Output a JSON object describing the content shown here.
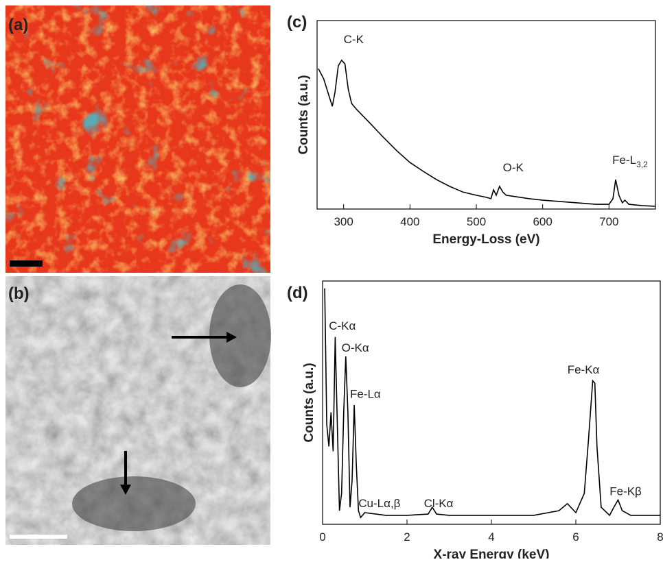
{
  "images": [
    {
      "label": "(a)"
    },
    {
      "label": "(b)"
    }
  ],
  "chart_data": [
    {
      "type": "line",
      "label": "(c)",
      "xlabel": "Energy-Loss (eV)",
      "ylabel": "Counts (a.u.)",
      "color": "#000000",
      "xlim": [
        260,
        770
      ],
      "xticks": [
        300,
        400,
        500,
        600,
        700
      ],
      "ylim": [
        0,
        100
      ],
      "x": [
        262,
        270,
        278,
        283,
        287,
        292,
        297,
        302,
        307,
        312,
        320,
        340,
        360,
        380,
        400,
        420,
        440,
        460,
        480,
        500,
        515,
        522,
        526,
        530,
        535,
        540,
        545,
        560,
        580,
        600,
        640,
        680,
        700,
        706,
        710,
        715,
        720,
        724,
        730,
        750,
        770
      ],
      "values": [
        74.5,
        69,
        60,
        54.5,
        62,
        76,
        79,
        77,
        63.6,
        56,
        52.7,
        45.5,
        38,
        31,
        24.7,
        20,
        15.6,
        12,
        9,
        7.3,
        6.2,
        5.5,
        10.2,
        7.3,
        12,
        9,
        7.3,
        6.5,
        5.5,
        4.7,
        3.6,
        2.5,
        2.5,
        5.5,
        15.6,
        7.3,
        3.3,
        4.7,
        2.5,
        1.8,
        1.5
      ],
      "annotations": [
        {
          "text": "C-K",
          "x": 300,
          "y": 88
        },
        {
          "text": "O-K",
          "x": 540,
          "y": 20
        },
        {
          "text": "Fe-L",
          "sub": "3,2",
          "x": 705,
          "y": 24
        }
      ]
    },
    {
      "type": "line",
      "label": "(d)",
      "xlabel": "X-ray Energy (keV)",
      "ylabel": "Counts (a.u.)",
      "color": "#000000",
      "xlim": [
        0,
        8
      ],
      "xticks": [
        0,
        2,
        4,
        6,
        8
      ],
      "ylim": [
        0,
        100
      ],
      "x": [
        0.05,
        0.1,
        0.15,
        0.2,
        0.25,
        0.3,
        0.35,
        0.4,
        0.45,
        0.5,
        0.55,
        0.6,
        0.65,
        0.7,
        0.75,
        0.8,
        0.85,
        0.9,
        1.0,
        1.5,
        2.0,
        2.5,
        2.6,
        2.7,
        3.0,
        4.0,
        5.0,
        5.6,
        5.8,
        6.0,
        6.2,
        6.3,
        6.4,
        6.45,
        6.5,
        6.6,
        6.8,
        6.9,
        7.0,
        7.1,
        7.3,
        8.0
      ],
      "values": [
        97,
        41,
        32,
        46,
        30,
        77,
        41,
        5.6,
        12.7,
        46,
        69,
        46,
        7,
        18,
        49,
        24,
        5.6,
        2.8,
        4.8,
        3.7,
        3.7,
        4.2,
        7,
        4.2,
        3.7,
        3.7,
        3.7,
        5.6,
        8.5,
        4.8,
        12.7,
        35,
        59,
        58,
        32,
        7,
        3.7,
        7,
        10,
        5.6,
        3.7,
        3.7
      ],
      "annotations": [
        {
          "text": "C-Kα",
          "x": 0.15,
          "y": 80
        },
        {
          "text": "O-Kα",
          "x": 0.45,
          "y": 71
        },
        {
          "text": "Fe-Lα",
          "x": 0.65,
          "y": 52
        },
        {
          "text": "Cu-Lα,β",
          "x": 0.85,
          "y": 7
        },
        {
          "text": "Cl-Kα",
          "x": 2.4,
          "y": 7
        },
        {
          "text": "Fe-Kα",
          "x": 5.8,
          "y": 62
        },
        {
          "text": "Fe-Kβ",
          "x": 6.8,
          "y": 12
        }
      ]
    }
  ]
}
